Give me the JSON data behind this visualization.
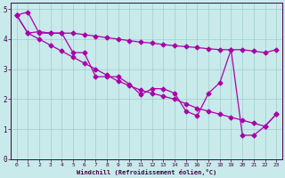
{
  "xlabel": "Windchill (Refroidissement éolien,°C)",
  "xlim": [
    -0.5,
    23.5
  ],
  "ylim": [
    0,
    5.2
  ],
  "xticks": [
    0,
    1,
    2,
    3,
    4,
    5,
    6,
    7,
    8,
    9,
    10,
    11,
    12,
    13,
    14,
    15,
    16,
    17,
    18,
    19,
    20,
    21,
    22,
    23
  ],
  "yticks": [
    0,
    1,
    2,
    3,
    4,
    5
  ],
  "background_color": "#c8eaea",
  "grid_color": "#a0cccc",
  "line_color": "#aa00aa",
  "markersize": 2.5,
  "linewidth": 0.9,
  "line_upper_x": [
    0,
    1,
    2,
    3,
    4,
    5,
    6,
    7,
    8,
    9,
    10,
    11,
    12,
    13,
    14,
    15,
    16,
    17,
    18,
    19,
    20,
    21,
    22,
    23
  ],
  "line_upper_y": [
    4.8,
    4.2,
    4.25,
    4.2,
    4.2,
    4.2,
    4.15,
    4.1,
    4.05,
    4.0,
    3.95,
    3.9,
    3.87,
    3.82,
    3.78,
    3.75,
    3.72,
    3.68,
    3.65,
    3.65,
    3.65,
    3.6,
    3.55,
    3.65
  ],
  "line_diag_x": [
    0,
    1,
    2,
    3,
    4,
    5,
    6,
    7,
    8,
    9,
    10,
    11,
    12,
    13,
    14,
    15,
    16,
    17,
    18,
    19,
    20,
    21,
    22,
    23
  ],
  "line_diag_y": [
    4.8,
    4.2,
    4.0,
    3.8,
    3.6,
    3.4,
    3.2,
    3.0,
    2.8,
    2.6,
    2.45,
    2.3,
    2.2,
    2.1,
    2.0,
    1.85,
    1.7,
    1.6,
    1.5,
    1.4,
    1.3,
    1.2,
    1.1,
    1.5
  ],
  "line_zigzag_x": [
    0,
    1,
    2,
    3,
    4,
    5,
    6,
    7,
    8,
    9,
    10,
    11,
    12,
    13,
    14,
    15,
    16,
    17,
    18,
    19,
    20,
    21,
    22,
    23
  ],
  "line_zigzag_y": [
    4.8,
    4.9,
    4.2,
    4.2,
    4.2,
    3.55,
    3.55,
    2.75,
    2.75,
    2.75,
    2.5,
    2.15,
    2.35,
    2.35,
    2.2,
    1.6,
    1.45,
    2.2,
    2.55,
    3.65,
    0.8,
    0.8,
    1.1,
    1.5
  ]
}
